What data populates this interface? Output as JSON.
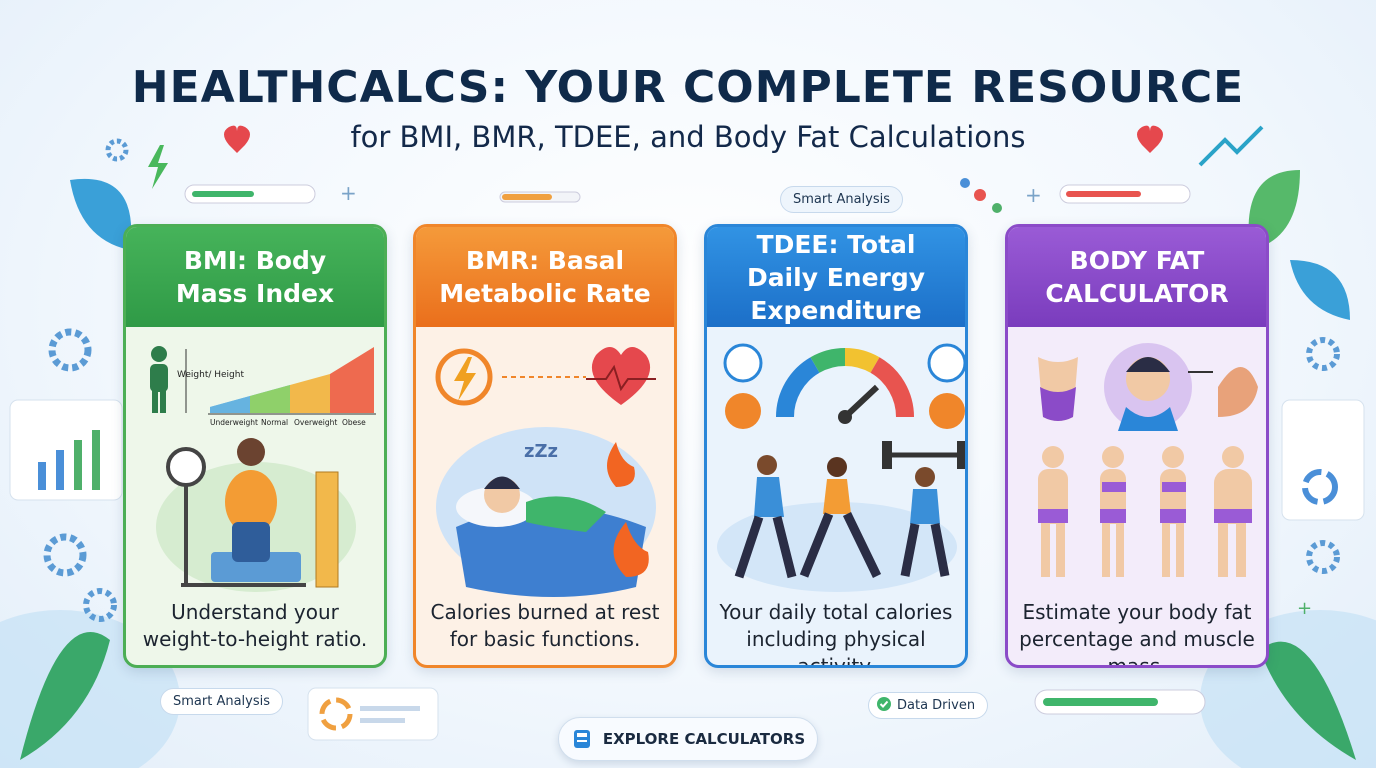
{
  "header": {
    "title": "HEALTHCALCS: YOUR COMPLETE RESOURCE",
    "subtitle": "for BMI, BMR, TDEE, and Body Fat Calculations"
  },
  "cards": [
    {
      "title": "BMI: Body Mass Index",
      "description": "Understand your weight-to-height ratio.",
      "chart_labels": {
        "axis": "Weight/ Height",
        "categories": [
          "Underweight",
          "Normal",
          "Overweight",
          "Obese"
        ]
      }
    },
    {
      "title": "BMR: Basal Metabolic Rate",
      "description": "Calories burned at rest for basic functions."
    },
    {
      "title": "TDEE: Total Daily Energy Expenditure",
      "description": "Your daily total calories including physical activity."
    },
    {
      "title": "BODY FAT CALCULATOR",
      "description": "Estimate your body fat percentage and muscle mass."
    }
  ],
  "badges": [
    "Smart Analysis",
    "Smart Analysis",
    "Data Driven"
  ],
  "button": {
    "label": "EXPLORE CALCULATORS"
  }
}
